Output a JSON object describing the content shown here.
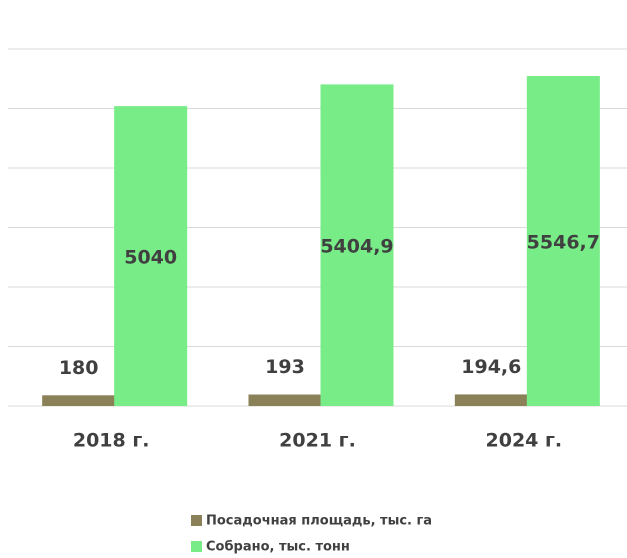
{
  "chart_data": {
    "type": "bar",
    "categories": [
      "2018 г.",
      "2021 г.",
      "2024 г."
    ],
    "series": [
      {
        "name": "Посадочная площадь, тыс. га",
        "color": "#8b8158",
        "values": [
          180,
          193,
          194.6
        ],
        "value_labels": [
          "180",
          "193",
          "194,6"
        ]
      },
      {
        "name": "Собрано, тыс. тонн",
        "color": "#77ec87",
        "values": [
          5040,
          5404.9,
          5546.7
        ],
        "value_labels": [
          "5040",
          "5404,9",
          "5546,7"
        ]
      }
    ],
    "ylim": [
      0,
      6000
    ],
    "yticks": [
      0,
      1000,
      2000,
      3000,
      4000,
      5000,
      6000
    ],
    "grid": true
  }
}
